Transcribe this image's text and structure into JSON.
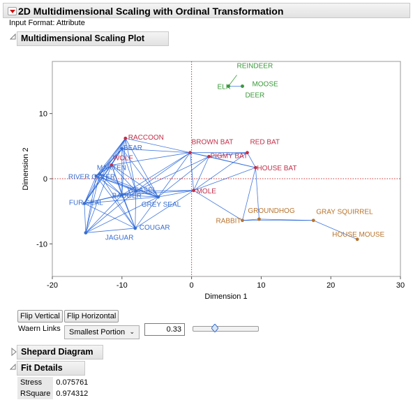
{
  "header": {
    "title": "2D Multidimensional Scaling with Ordinal Transformation"
  },
  "input_format": "Input Format: Attribute",
  "plot_section": {
    "title": "Multidimensional Scaling Plot"
  },
  "colors": {
    "blue": "#3a6fd0",
    "red": "#c0304a",
    "green": "#3a9a3a",
    "orange": "#b8742e",
    "link": "#1f5fd8",
    "ref": "#d03030"
  },
  "chart_data": {
    "type": "scatter",
    "xlabel": "Dimension 1",
    "ylabel": "Dimension 2",
    "xlim": [
      -20,
      30
    ],
    "ylim": [
      -15,
      18
    ],
    "x_ticks": [
      "-20",
      "-10",
      "0",
      "10",
      "20",
      "30"
    ],
    "y_ticks": [
      "-10",
      "0",
      "10"
    ],
    "points": [
      {
        "label": "REINDEER",
        "x": 5.3,
        "y": 14.2,
        "group": "green"
      },
      {
        "label": "ELK",
        "x": 5.3,
        "y": 14.2,
        "group": "green"
      },
      {
        "label": "MOOSE",
        "x": 7.3,
        "y": 14.2,
        "group": "green"
      },
      {
        "label": "DEER",
        "x": 7.3,
        "y": 14.2,
        "group": "green"
      },
      {
        "label": "RACCOON",
        "x": -9.5,
        "y": 6.2,
        "group": "red"
      },
      {
        "label": "BEAR",
        "x": -10.0,
        "y": 4.6,
        "group": "blue"
      },
      {
        "label": "BROWN BAT",
        "x": -0.2,
        "y": 4.0,
        "group": "red"
      },
      {
        "label": "RED BAT",
        "x": 8.0,
        "y": 4.0,
        "group": "red"
      },
      {
        "label": "PIGMY BAT",
        "x": 2.5,
        "y": 3.4,
        "group": "red"
      },
      {
        "label": "HOUSE BAT",
        "x": 9.2,
        "y": 1.7,
        "group": "red"
      },
      {
        "label": "WOLF",
        "x": -11.5,
        "y": 2.1,
        "group": "red"
      },
      {
        "label": "MARTEN",
        "x": -13.2,
        "y": 0.7,
        "group": "blue"
      },
      {
        "label": "RIVER OTTER",
        "x": -13.7,
        "y": 0.4,
        "group": "blue"
      },
      {
        "label": "WEASEL",
        "x": -8.0,
        "y": -1.9,
        "group": "blue"
      },
      {
        "label": "BADGER",
        "x": -10.0,
        "y": -2.5,
        "group": "blue"
      },
      {
        "label": "FUR SEAL",
        "x": -15.4,
        "y": -3.8,
        "group": "blue"
      },
      {
        "label": "GREY SEAL",
        "x": -4.8,
        "y": -2.8,
        "group": "blue"
      },
      {
        "label": "MOLE",
        "x": 0.3,
        "y": -1.8,
        "group": "red"
      },
      {
        "label": "JAGUAR",
        "x": -15.2,
        "y": -8.3,
        "group": "blue"
      },
      {
        "label": "COUGAR",
        "x": -8.1,
        "y": -7.6,
        "group": "blue"
      },
      {
        "label": "GROUNDHOG",
        "x": 9.7,
        "y": -6.2,
        "group": "orange"
      },
      {
        "label": "RABBIT",
        "x": 7.3,
        "y": -6.4,
        "group": "orange"
      },
      {
        "label": "GRAY SQUIRREL",
        "x": 17.5,
        "y": -6.4,
        "group": "orange"
      },
      {
        "label": "HOUSE MOUSE",
        "x": 23.8,
        "y": -9.3,
        "group": "orange"
      }
    ],
    "grid": false
  },
  "controls": {
    "flip_vertical": "Flip Vertical",
    "flip_horizontal": "Flip Horizontal",
    "waern_label": "Waern Links",
    "waern_value": "Smallest Portion",
    "threshold": "0.33",
    "slider_fraction": 0.33
  },
  "shepard": {
    "title": "Shepard Diagram"
  },
  "fit": {
    "title": "Fit Details",
    "rows": [
      {
        "key": "Stress",
        "value": "0.075761"
      },
      {
        "key": "RSquare",
        "value": "0.974312"
      }
    ]
  }
}
